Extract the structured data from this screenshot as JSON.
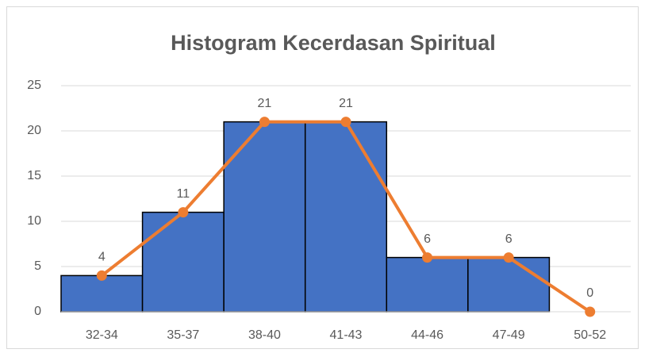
{
  "chart_data": {
    "type": "bar",
    "title": "Histogram Kecerdasan Spiritual",
    "categories": [
      "32-34",
      "35-37",
      "38-40",
      "41-43",
      "44-46",
      "47-49",
      "50-52"
    ],
    "values": [
      4,
      11,
      21,
      21,
      6,
      6,
      0
    ],
    "color": "#4472c4",
    "line_color": "#ed7d31",
    "ylim": [
      0,
      25
    ],
    "yticks": [
      0,
      5,
      10,
      15,
      20,
      25
    ],
    "grid": true
  }
}
